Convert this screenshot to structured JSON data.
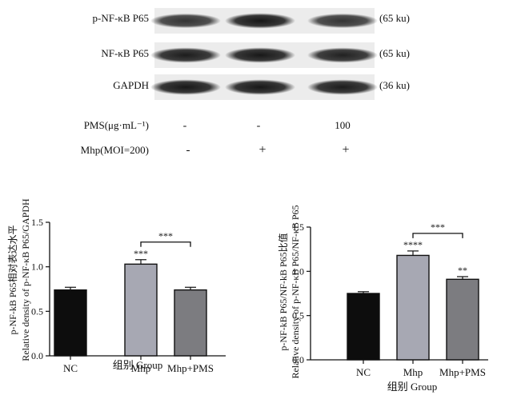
{
  "blot": {
    "rows": [
      {
        "label": "p-NF-κB P65",
        "size": "(65 ku)",
        "intensity": [
          0.78,
          0.9,
          0.78
        ]
      },
      {
        "label": "NF-κB P65",
        "size": "(65 ku)",
        "intensity": [
          0.88,
          0.9,
          0.86
        ]
      },
      {
        "label": "GAPDH",
        "size": "(36 ku)",
        "intensity": [
          0.9,
          0.9,
          0.88
        ]
      }
    ],
    "treatments": [
      {
        "label": "PMS(μg·mL⁻¹)",
        "values": [
          "-",
          "-",
          "100"
        ]
      },
      {
        "label": "Mhp(MOI=200)",
        "values": [
          "-",
          "+",
          "+"
        ]
      }
    ]
  },
  "chart_data": [
    {
      "type": "bar",
      "categories": [
        "NC",
        "Mhp",
        "Mhp+PMS"
      ],
      "values": [
        0.74,
        1.03,
        0.74
      ],
      "errors": [
        0.03,
        0.05,
        0.03
      ],
      "bar_colors": [
        "#0d0d0d",
        "#a7a8b3",
        "#7c7c80"
      ],
      "ylabel_cn": "p-NF-kB P65相对表达水平",
      "ylabel_en": "Relative density of p-NF-κB P65/GAPDH",
      "xlabel": "组别 Group",
      "ylim": [
        0,
        1.5
      ],
      "yticks": [
        "0.0",
        "0.5",
        "1.0",
        "1.5"
      ],
      "bar_annotations": [
        "",
        "***",
        ""
      ],
      "bracket": {
        "from": 1,
        "to": 2,
        "label": "***"
      }
    },
    {
      "type": "bar",
      "categories": [
        "NC",
        "Mhp",
        "Mhp+PMS"
      ],
      "values": [
        0.75,
        1.18,
        0.91
      ],
      "errors": [
        0.02,
        0.05,
        0.03
      ],
      "bar_colors": [
        "#0d0d0d",
        "#a7a8b3",
        "#7c7c80"
      ],
      "ylabel_cn": "p-NF-kB P65/NF-kB P65比值",
      "ylabel_en": "Relative density of p-NF-κB P65/NF-κB P65",
      "xlabel": "组别 Group",
      "ylim": [
        0,
        1.5
      ],
      "yticks": [
        "0.0",
        "0.5",
        "1.0",
        "1.5"
      ],
      "bar_annotations": [
        "",
        "****",
        "**"
      ],
      "bracket": {
        "from": 1,
        "to": 2,
        "label": "***"
      }
    }
  ]
}
